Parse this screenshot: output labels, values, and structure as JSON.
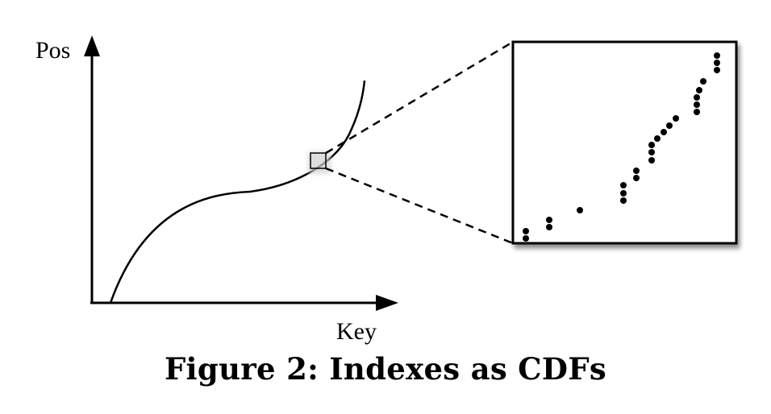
{
  "diagram": {
    "y_axis_label": "Pos",
    "x_axis_label": "Key",
    "caption": "Figure 2: Indexes as CDFs"
  },
  "zoom_points_count_visible": true,
  "colors": {
    "ink": "#000000",
    "shadow": "#9a9a9a",
    "highlight": "#e6e6e6"
  }
}
